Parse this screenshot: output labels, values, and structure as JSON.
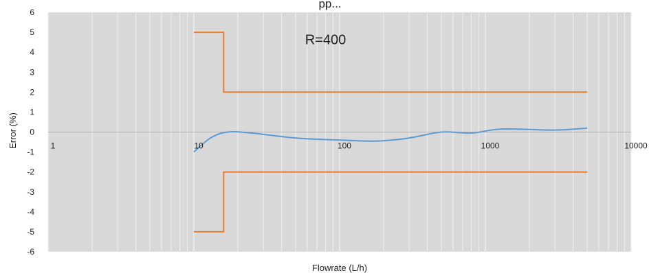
{
  "page": {
    "top_caption": "pp..."
  },
  "chart_data": {
    "type": "line",
    "title": "",
    "xlabel": "Flowrate (L/h)",
    "ylabel": "Error (%)",
    "xscale": "log",
    "xlim": [
      1,
      10000
    ],
    "ylim": [
      -6,
      6
    ],
    "x_ticks": [
      1,
      10,
      100,
      1000,
      10000
    ],
    "x_tick_labels": [
      "1",
      "10",
      "100",
      "1000",
      "10000"
    ],
    "y_ticks": [
      -6,
      -5,
      -4,
      -3,
      -2,
      -1,
      0,
      1,
      2,
      3,
      4,
      5,
      6
    ],
    "y_tick_labels": [
      "-6",
      "-5",
      "-4",
      "-3",
      "-2",
      "-1",
      "0",
      "1",
      "2",
      "3",
      "4",
      "5",
      "6"
    ],
    "grid": "vertical minor and major (log), horizontal line at y=0",
    "legend": "none",
    "annotations": [
      {
        "text": "R=400",
        "x": 80,
        "y": 4.4
      }
    ],
    "colors": {
      "background": "#d9d9d9",
      "grid": "#f2f2f2",
      "limit_series": "#ed7d31",
      "measured_series": "#5b9bd5",
      "zero_line": "#a6a6a6"
    },
    "series": [
      {
        "role": "upper-limit",
        "color": "#ed7d31",
        "points": [
          [
            10,
            5
          ],
          [
            16,
            5
          ],
          [
            16,
            2
          ],
          [
            5000,
            2
          ]
        ]
      },
      {
        "role": "lower-limit",
        "color": "#ed7d31",
        "points": [
          [
            10,
            -5
          ],
          [
            16,
            -5
          ],
          [
            16,
            -2
          ],
          [
            5000,
            -2
          ]
        ]
      },
      {
        "role": "measured-error",
        "color": "#5b9bd5",
        "smooth": true,
        "points": [
          [
            10,
            -1.0
          ],
          [
            13,
            -0.3
          ],
          [
            17,
            0.0
          ],
          [
            25,
            -0.05
          ],
          [
            50,
            -0.3
          ],
          [
            100,
            -0.4
          ],
          [
            180,
            -0.45
          ],
          [
            300,
            -0.3
          ],
          [
            500,
            0.0
          ],
          [
            800,
            -0.05
          ],
          [
            1300,
            0.15
          ],
          [
            3000,
            0.1
          ],
          [
            5000,
            0.2
          ]
        ]
      }
    ]
  }
}
